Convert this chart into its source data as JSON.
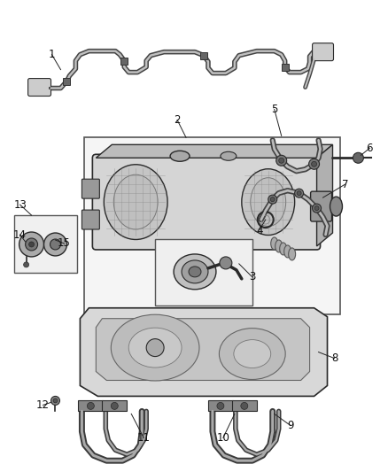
{
  "background_color": "#ffffff",
  "figure_width": 4.38,
  "figure_height": 5.33,
  "dpi": 100,
  "line_color": "#2a2a2a",
  "gray_dark": "#555555",
  "gray_mid": "#888888",
  "gray_light": "#cccccc",
  "gray_lighter": "#e8e8e8",
  "gray_tank": "#c8c8c8",
  "gray_fill": "#d4d4d4"
}
